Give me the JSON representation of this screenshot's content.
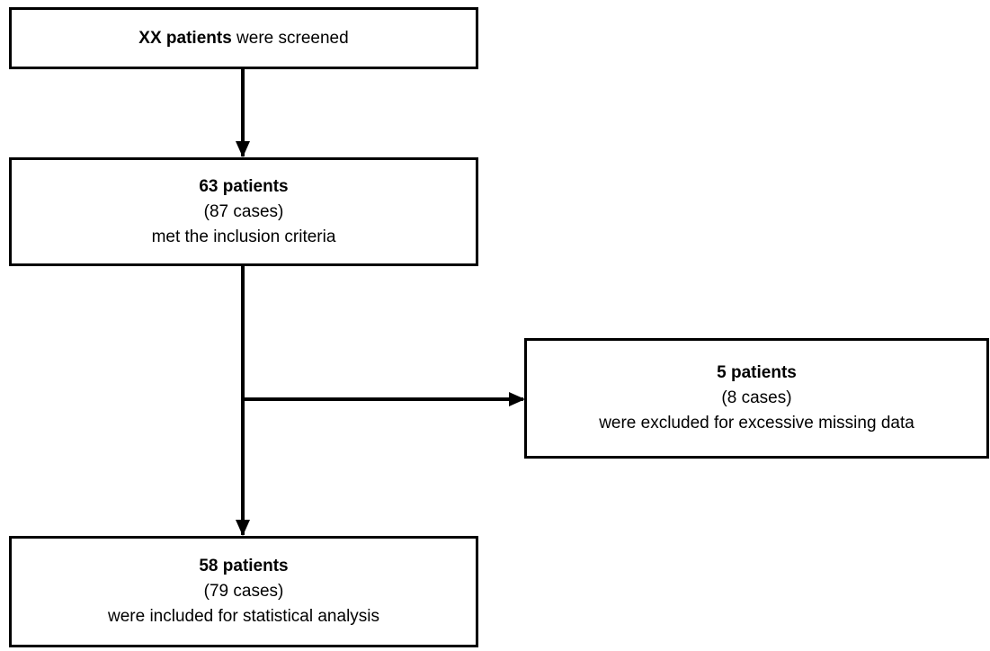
{
  "flowchart": {
    "screened": {
      "bold": "XX patients",
      "rest": " were screened"
    },
    "eligible": {
      "bold": "63 patients",
      "cases": "(87 cases)",
      "note": "met the inclusion criteria"
    },
    "excluded": {
      "bold": "5 patients",
      "cases": "(8 cases)",
      "note": "were excluded for excessive missing data"
    },
    "analyzed": {
      "bold": "58 patients",
      "cases": "(79 cases)",
      "note": "were included for statistical analysis"
    }
  },
  "colors": {
    "stroke": "#000000",
    "background": "#ffffff"
  }
}
